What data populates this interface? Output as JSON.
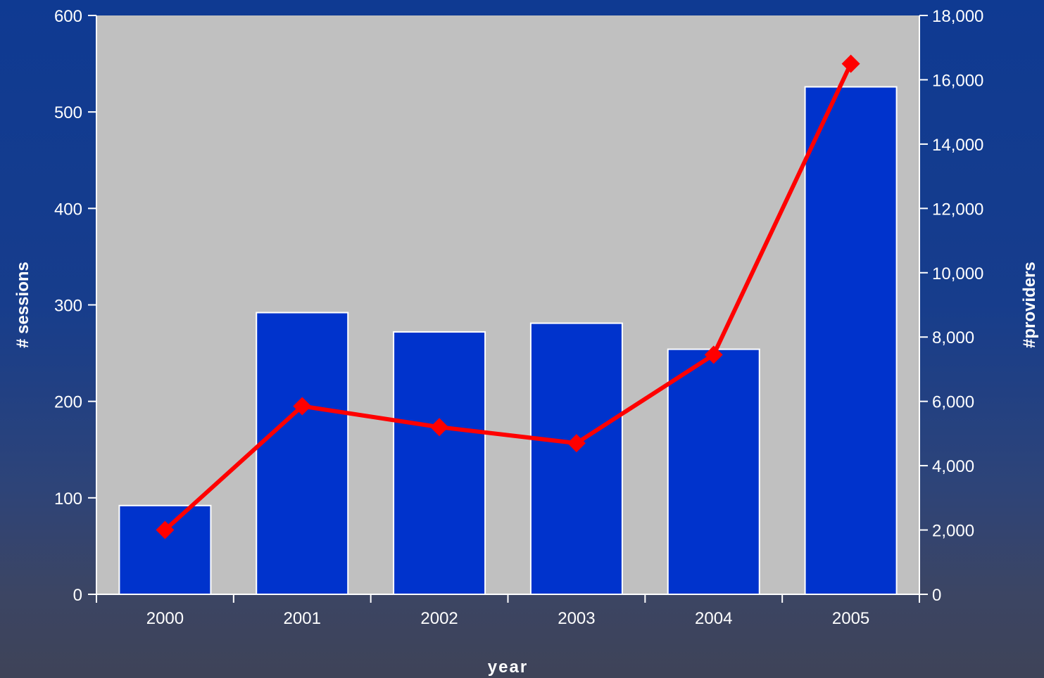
{
  "chart_data": {
    "type": "bar",
    "title": "",
    "categories": [
      "2000",
      "2001",
      "2002",
      "2003",
      "2004",
      "2005"
    ],
    "series": [
      {
        "name": "",
        "type": "bar",
        "axis": "left",
        "values": [
          92,
          292,
          272,
          281,
          254,
          526
        ]
      },
      {
        "name": "",
        "type": "line",
        "axis": "right",
        "values": [
          2000,
          5850,
          5200,
          4700,
          7450,
          16500
        ]
      }
    ],
    "xlabel": "year",
    "ylabel": "# sessions",
    "y2label": "#providers",
    "ylim": [
      0,
      600
    ],
    "y2lim": [
      0,
      18000
    ],
    "yticks": [
      "0",
      "100",
      "200",
      "300",
      "400",
      "500",
      "600"
    ],
    "y2ticks": [
      "0",
      "2,000",
      "4,000",
      "6,000",
      "8,000",
      "10,000",
      "12,000",
      "14,000",
      "16,000",
      "18,000"
    ],
    "grid": false,
    "legend": "none",
    "colors": {
      "plot_bg": "#c0c0c0",
      "bar": "#0033cc",
      "bar_edge": "#ffffff",
      "line": "#ff0000",
      "text": "#ffffff"
    }
  }
}
